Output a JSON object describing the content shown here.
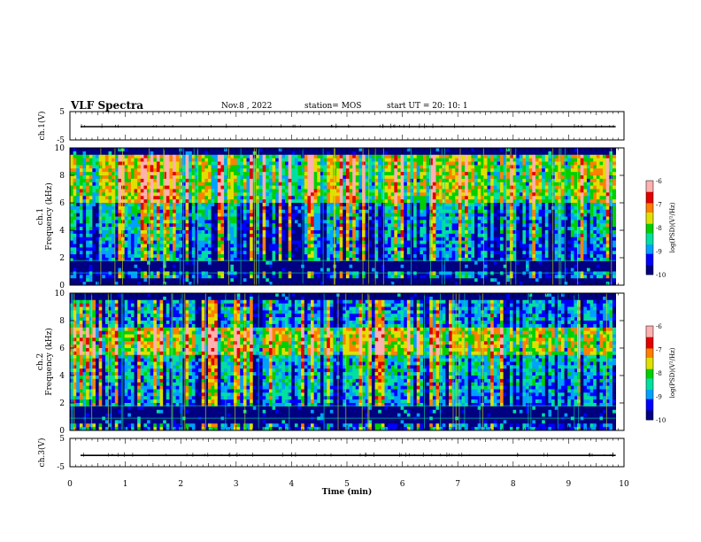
{
  "header": {
    "title": "VLF Spectra",
    "date": "Nov.8 , 2022",
    "station": "station= MOS",
    "start_ut": "start UT = 20: 10: 1"
  },
  "chart_data": [
    {
      "type": "line",
      "panel": "ch1-waveform",
      "ylabel": "ch.1(V)",
      "ylim": [
        -5,
        5
      ],
      "yticks": [
        "5",
        "-5"
      ],
      "xlim": [
        0,
        10
      ],
      "note_level_v": -0.3
    },
    {
      "type": "heatmap",
      "panel": "ch1-spectrogram",
      "ylabel": "ch.1 Frequency (kHz)",
      "ylim": [
        0,
        10
      ],
      "yticks": [
        "0",
        "2",
        "4",
        "6",
        "8",
        "10"
      ],
      "xlim": [
        0,
        9.85
      ],
      "colorbar": {
        "label": "log(PSD)(V²/Hz)",
        "range": [
          -10,
          -6
        ],
        "ticks": [
          "-6",
          "-7",
          "-8",
          "-9",
          "-10"
        ]
      },
      "peak_band_khz": [
        6.0,
        9.5
      ],
      "notch_bands_khz": [
        [
          1.0,
          1.7
        ],
        [
          0.0,
          0.4
        ]
      ]
    },
    {
      "type": "heatmap",
      "panel": "ch2-spectrogram",
      "ylabel": "ch.2 Frequency (kHz)",
      "ylim": [
        0,
        10
      ],
      "yticks": [
        "0",
        "2",
        "4",
        "6",
        "8",
        "10"
      ],
      "xlim": [
        0,
        9.85
      ],
      "colorbar": {
        "label": "log(PSD)(V²/Hz)",
        "range": [
          -10,
          -6
        ],
        "ticks": [
          "-6",
          "-7",
          "-8",
          "-9",
          "-10"
        ]
      },
      "peak_band_khz": [
        5.5,
        7.5
      ],
      "notch_bands_khz": [
        [
          0.5,
          1.8
        ]
      ]
    },
    {
      "type": "line",
      "panel": "ch3-waveform",
      "ylabel": "ch.3(V)",
      "ylim": [
        -5,
        5
      ],
      "yticks": [
        "5",
        "-5"
      ],
      "xlim": [
        0,
        10
      ],
      "note_level_v": -1.0
    }
  ],
  "xaxis": {
    "label": "Time (min)",
    "ticks": [
      "0",
      "1",
      "2",
      "3",
      "4",
      "5",
      "6",
      "7",
      "8",
      "9",
      "10"
    ],
    "range": [
      0,
      10
    ]
  },
  "colors": {
    "colormap": [
      "#000080",
      "#0000ff",
      "#00a0ff",
      "#00e0a0",
      "#00d000",
      "#e0e000",
      "#ff8000",
      "#e00000",
      "#ffb0b0",
      "#ffffff"
    ]
  }
}
